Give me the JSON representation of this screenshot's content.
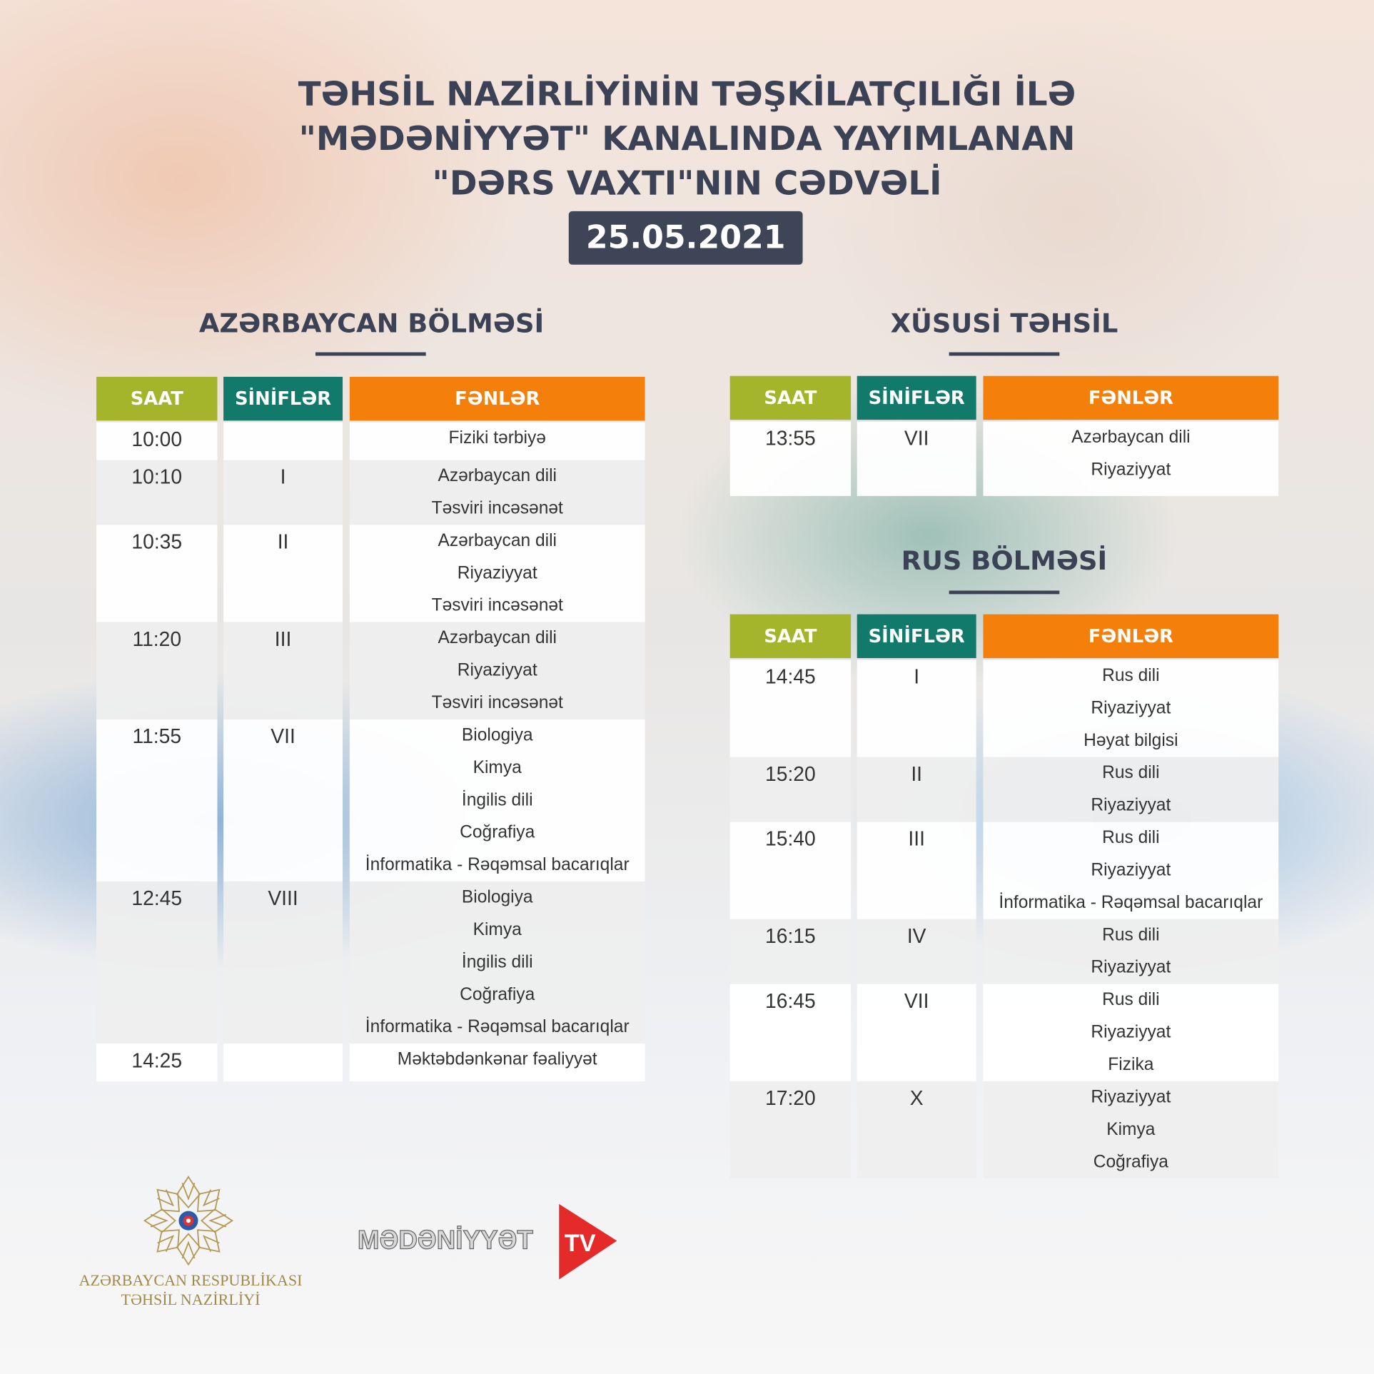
{
  "header": {
    "title_lines": [
      "TƏHSİL NAZİRLİYİNİN TƏŞKİLATÇILIĞI İLƏ",
      "\"MƏDƏNİYYƏT\" KANALINDA YAYIMLANAN",
      "\"DƏRS VAXTI\"NIN CƏDVƏLİ"
    ],
    "date": "25.05.2021"
  },
  "columns": {
    "time": "SAAT",
    "classes": "SİNİFLƏR",
    "subjects": "FƏNLƏR"
  },
  "colors": {
    "time_header": "#a5b52b",
    "classes_header": "#127a6a",
    "subjects_header": "#f57f0b",
    "title": "#3b4256"
  },
  "sections": [
    {
      "title": "AZƏRBAYCAN BÖLMƏSİ",
      "rows": [
        {
          "time": "10:00",
          "class": "",
          "subjects": [
            "Fiziki tərbiyə"
          ]
        },
        {
          "time": "10:10",
          "class": "I",
          "subjects": [
            "Azərbaycan dili",
            "Təsviri incəsənət"
          ]
        },
        {
          "time": "10:35",
          "class": "II",
          "subjects": [
            "Azərbaycan dili",
            "Riyaziyyat",
            "Təsviri incəsənət"
          ]
        },
        {
          "time": "11:20",
          "class": "III",
          "subjects": [
            "Azərbaycan dili",
            "Riyaziyyat",
            "Təsviri incəsənət"
          ]
        },
        {
          "time": "11:55",
          "class": "VII",
          "subjects": [
            "Biologiya",
            "Kimya",
            "İngilis dili",
            "Coğrafiya",
            "İnformatika - Rəqəmsal bacarıqlar"
          ]
        },
        {
          "time": "12:45",
          "class": "VIII",
          "subjects": [
            "Biologiya",
            "Kimya",
            "İngilis dili",
            "Coğrafiya",
            "İnformatika - Rəqəmsal bacarıqlar"
          ]
        },
        {
          "time": "14:25",
          "class": "",
          "subjects": [
            "Məktəbdənkənar fəaliyyət"
          ]
        }
      ]
    },
    {
      "title": "XÜSUSİ TƏHSİL",
      "rows": [
        {
          "time": "13:55",
          "class": "VII",
          "subjects": [
            "Azərbaycan dili",
            "Riyaziyyat"
          ]
        }
      ]
    },
    {
      "title": "RUS BÖLMƏSİ",
      "rows": [
        {
          "time": "14:45",
          "class": "I",
          "subjects": [
            "Rus dili",
            "Riyaziyyat",
            "Həyat bilgisi"
          ]
        },
        {
          "time": "15:20",
          "class": "II",
          "subjects": [
            "Rus dili",
            "Riyaziyyat"
          ]
        },
        {
          "time": "15:40",
          "class": "III",
          "subjects": [
            "Rus dili",
            "Riyaziyyat",
            "İnformatika - Rəqəmsal bacarıqlar"
          ]
        },
        {
          "time": "16:15",
          "class": "IV",
          "subjects": [
            "Rus dili",
            "Riyaziyyat"
          ]
        },
        {
          "time": "16:45",
          "class": "VII",
          "subjects": [
            "Rus dili",
            "Riyaziyyat",
            "Fizika"
          ]
        },
        {
          "time": "17:20",
          "class": "X",
          "subjects": [
            "Riyaziyyat",
            "Kimya",
            "Coğrafiya"
          ]
        }
      ]
    }
  ],
  "footer": {
    "ministry_lines": [
      "AZƏRBAYCAN RESPUBLİKASI",
      "TƏHSİL NAZİRLİYİ"
    ],
    "tv_logo": "MƏDƏNİYYƏT TV",
    "tv_word": "MƏDƏNİYYƏT",
    "tv_badge": "TV"
  }
}
